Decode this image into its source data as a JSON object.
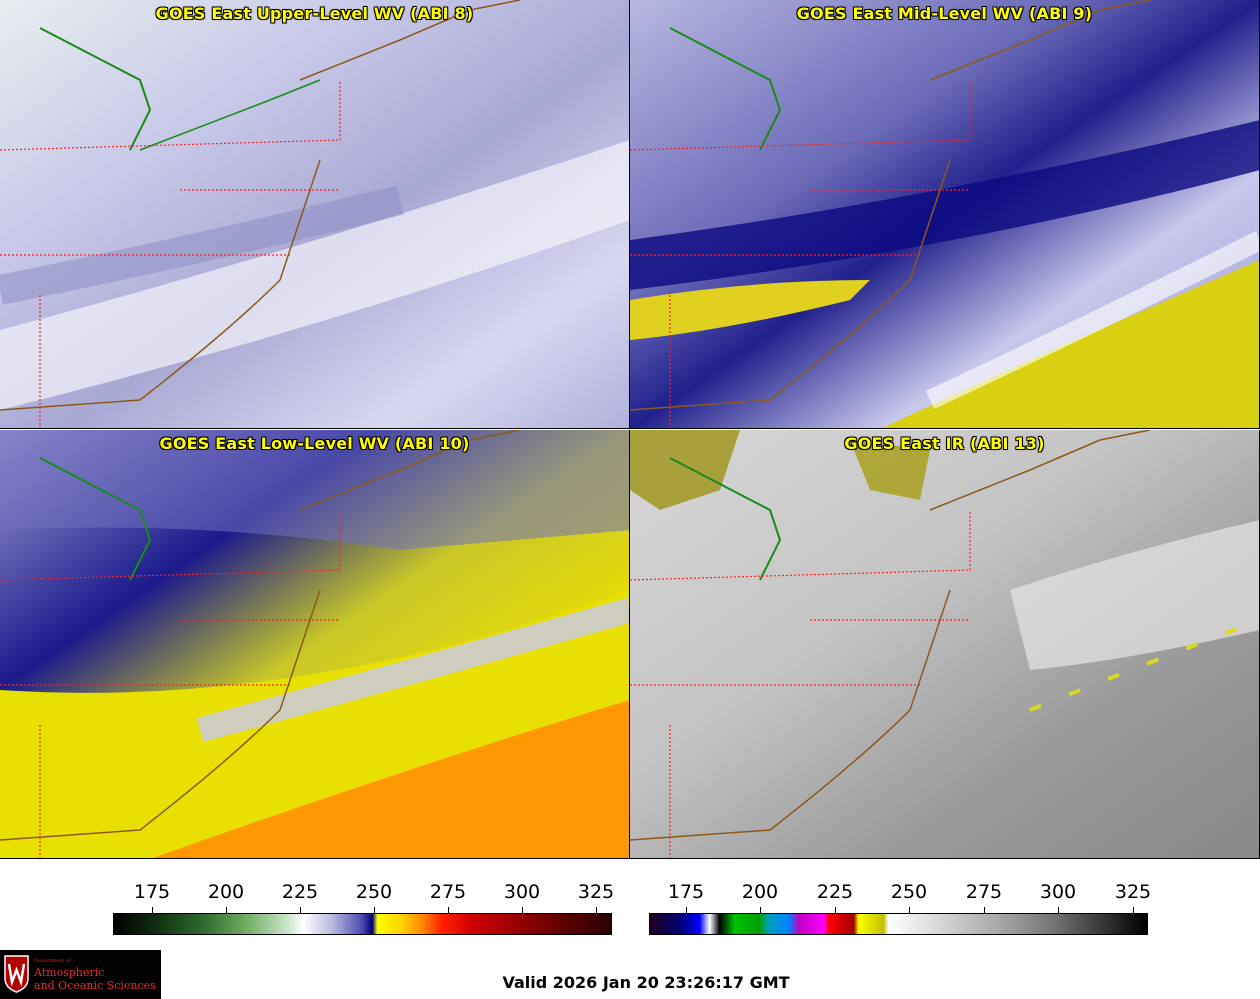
{
  "panels": {
    "upper": {
      "title": "GOES East Upper-Level WV (ABI 8)"
    },
    "mid": {
      "title": "GOES East Mid-Level WV (ABI 9)"
    },
    "low": {
      "title": "GOES East Low-Level WV (ABI 10)"
    },
    "ir": {
      "title": "GOES East IR (ABI 13)"
    }
  },
  "colorbars": {
    "wv": {
      "ticks": [
        "175",
        "200",
        "225",
        "250",
        "275",
        "300",
        "325"
      ]
    },
    "ir": {
      "ticks": [
        "175",
        "200",
        "225",
        "250",
        "275",
        "300",
        "325"
      ]
    }
  },
  "logo": {
    "dept": "Department of",
    "line1": "Atmospheric",
    "line2": "and Oceanic Sciences"
  },
  "valid_time": "Valid 2026 Jan 20 23:26:17 GMT",
  "colors": {
    "title": "#ffff00",
    "borders_state": "#ff2020",
    "coastline": "#8b5a1a",
    "boundary_green": "#1a8a1a"
  }
}
